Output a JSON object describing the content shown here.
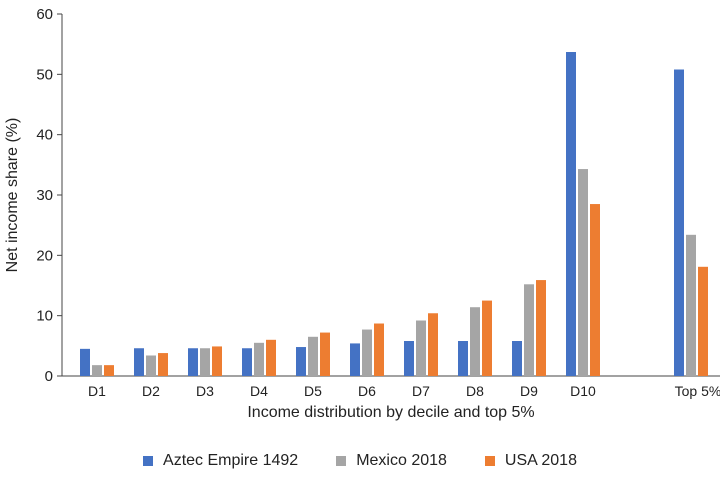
{
  "chart_data": {
    "type": "bar",
    "title": "",
    "xlabel": "Income distribution by decile and top 5%",
    "ylabel": "Net income share (%)",
    "ylim": [
      0,
      60
    ],
    "yticks": [
      0,
      10,
      20,
      30,
      40,
      50,
      60
    ],
    "grid": false,
    "legend_position": "bottom",
    "categories": [
      "D1",
      "D2",
      "D3",
      "D4",
      "D5",
      "D6",
      "D7",
      "D8",
      "D9",
      "D10",
      "Top 5%"
    ],
    "series": [
      {
        "name": "Aztec Empire 1492",
        "color": "#4472C4",
        "values": [
          4.5,
          4.6,
          4.6,
          4.6,
          4.8,
          5.4,
          5.8,
          5.8,
          5.8,
          53.7,
          50.8
        ]
      },
      {
        "name": "Mexico 2018",
        "color": "#A5A5A5",
        "values": [
          1.8,
          3.4,
          4.6,
          5.5,
          6.5,
          7.7,
          9.2,
          11.4,
          15.2,
          34.3,
          23.4
        ]
      },
      {
        "name": "USA 2018",
        "color": "#ED7D31",
        "values": [
          1.8,
          3.8,
          4.9,
          6.0,
          7.2,
          8.7,
          10.4,
          12.5,
          15.9,
          28.5,
          18.1
        ]
      }
    ]
  }
}
